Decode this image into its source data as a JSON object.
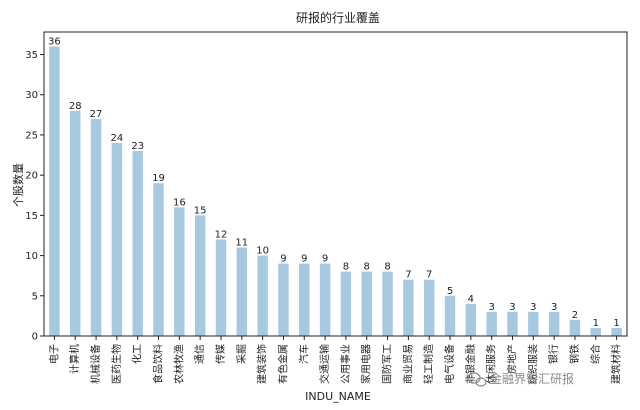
{
  "chart_data": {
    "type": "bar",
    "title": "研报的行业覆盖",
    "xlabel": "INDU_NAME",
    "ylabel": "个股数量",
    "ylim": [
      0,
      37.8
    ],
    "yticks": [
      0,
      5,
      10,
      15,
      20,
      25,
      30,
      35
    ],
    "grid": false,
    "bar_color": "#a6c8e0",
    "categories": [
      "电子",
      "计算机",
      "机械设备",
      "医药生物",
      "化工",
      "食品饮料",
      "农林牧渔",
      "通信",
      "传媒",
      "采掘",
      "建筑装饰",
      "有色金属",
      "汽车",
      "交通运输",
      "公用事业",
      "家用电器",
      "国防军工",
      "商业贸易",
      "轻工制造",
      "电气设备",
      "非银金融",
      "休闲服务",
      "房地产",
      "纺织服装",
      "银行",
      "钢铁",
      "综合",
      "建筑材料"
    ],
    "values": [
      36,
      28,
      27,
      24,
      23,
      19,
      16,
      15,
      12,
      11,
      10,
      9,
      9,
      9,
      8,
      8,
      8,
      7,
      7,
      5,
      4,
      3,
      3,
      3,
      3,
      2,
      1,
      1
    ]
  },
  "watermark": {
    "icon": "wechat-icon",
    "text": "金融界智汇研报"
  }
}
